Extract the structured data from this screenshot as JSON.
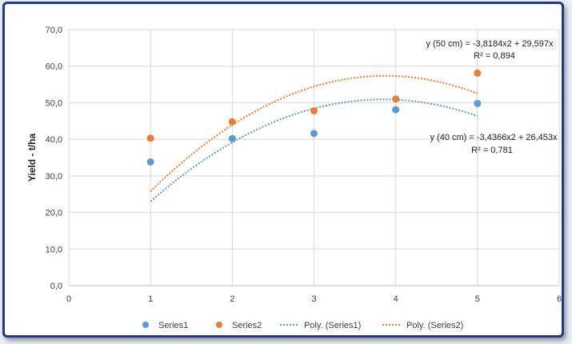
{
  "chart_data": {
    "type": "scatter",
    "ylabel": "Yield - t/ha",
    "xlabel": "",
    "xlim": [
      0,
      6
    ],
    "ylim": [
      0,
      70
    ],
    "x_ticks": [
      "0",
      "1",
      "2",
      "3",
      "4",
      "5",
      "6"
    ],
    "y_ticks": [
      "0,0",
      "10,0",
      "20,0",
      "30,0",
      "40,0",
      "50,0",
      "60,0",
      "70,0"
    ],
    "grid": true,
    "legend_position": "bottom",
    "series": [
      {
        "name": "Series1",
        "color": "#5b9bd5",
        "x": [
          1,
          2,
          3,
          4,
          5
        ],
        "y": [
          33.8,
          40.2,
          41.6,
          48.1,
          49.8
        ]
      },
      {
        "name": "Series2",
        "color": "#ed7d31",
        "x": [
          1,
          2,
          3,
          4,
          5
        ],
        "y": [
          40.3,
          44.8,
          47.8,
          51.0,
          58.1
        ]
      }
    ],
    "trendlines": [
      {
        "name": "Poly. (Series1)",
        "color": "#5b9bd5",
        "a": -3.4366,
        "b": 26.453,
        "c": 0,
        "fit": "Ax²+Bx+C (mapped)",
        "x_range": [
          1,
          5
        ]
      },
      {
        "name": "Poly. (Series2)",
        "color": "#ed7d31",
        "a": -3.8184,
        "b": 29.597,
        "c": 0,
        "x_range": [
          1,
          5
        ]
      }
    ],
    "annotations": [
      {
        "line1": "y (50 cm) = -3,8184x2 + 29,597x",
        "line2": "R² = 0,894"
      },
      {
        "line1": "y (40 cm) = -3,4366x2 + 26,453x",
        "line2": "R² = 0,781"
      }
    ]
  }
}
